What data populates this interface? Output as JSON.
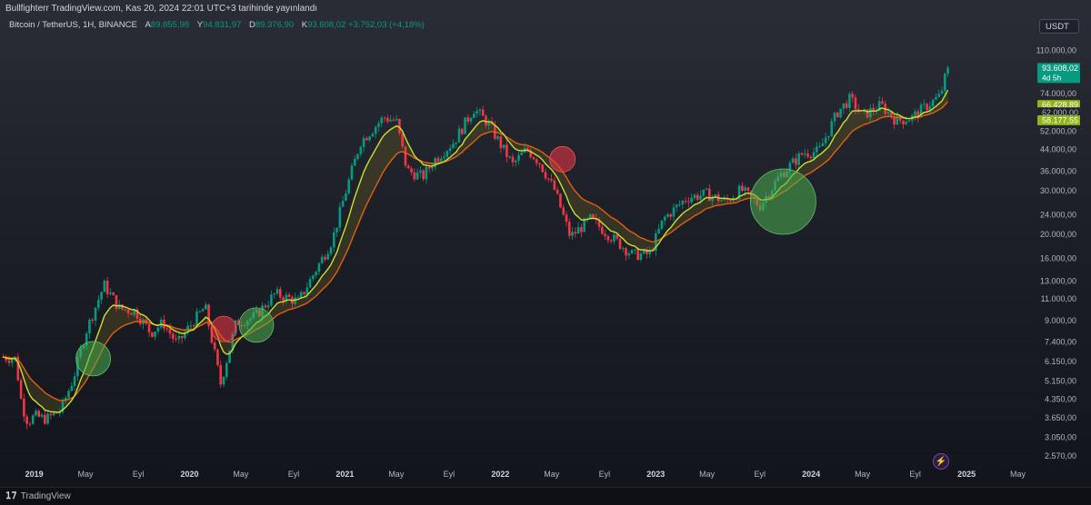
{
  "header": {
    "publisher": "Bullfighterr TradingView.com, Kas 20, 2024 22:01 UTC+3 tarihinde yayınlandı",
    "symbol": "Bitcoin / TetherUS, 1H, BINANCE",
    "ohlc": [
      {
        "k": "A",
        "v": "89.855,98"
      },
      {
        "k": "Y",
        "v": "94.831,97"
      },
      {
        "k": "D",
        "v": "89.376,90"
      },
      {
        "k": "K",
        "v": "93.608,02 +3.752,03 (+4,18%)"
      }
    ]
  },
  "currency_button": "USDT",
  "footer": {
    "brand": "TradingView"
  },
  "icons": {
    "bolt": "lightning-icon"
  },
  "colors": {
    "up": "#089981",
    "down": "#f23645",
    "fast_ma": "#c8e030",
    "slow_ma": "#e06010"
  },
  "chart_data": {
    "type": "candlestick",
    "y_scale": "log",
    "y_ticks": [
      {
        "value": 110000,
        "label": "110.000,00"
      },
      {
        "value": 74000,
        "label": "74.000,00"
      },
      {
        "value": 62000,
        "label": "62.000,00"
      },
      {
        "value": 52000,
        "label": "52.000,00"
      },
      {
        "value": 44000,
        "label": "44.000,00"
      },
      {
        "value": 36000,
        "label": "36.000,00"
      },
      {
        "value": 30000,
        "label": "30.000,00"
      },
      {
        "value": 24000,
        "label": "24.000,00"
      },
      {
        "value": 20000,
        "label": "20.000,00"
      },
      {
        "value": 16000,
        "label": "16.000,00"
      },
      {
        "value": 13000,
        "label": "13.000,00"
      },
      {
        "value": 11000,
        "label": "11.000,00"
      },
      {
        "value": 9000,
        "label": "9.000,00"
      },
      {
        "value": 7400,
        "label": "7.400,00"
      },
      {
        "value": 6150,
        "label": "6.150,00"
      },
      {
        "value": 5150,
        "label": "5.150,00"
      },
      {
        "value": 4350,
        "label": "4.350,00"
      },
      {
        "value": 3650,
        "label": "3.650,00"
      },
      {
        "value": 3050,
        "label": "3.050,00"
      },
      {
        "value": 2570,
        "label": "2.570,00"
      }
    ],
    "x_ticks": [
      {
        "t": 2019.0,
        "label": "2019",
        "bold": true
      },
      {
        "t": 2019.33,
        "label": "May"
      },
      {
        "t": 2019.67,
        "label": "Eyl"
      },
      {
        "t": 2020.0,
        "label": "2020",
        "bold": true
      },
      {
        "t": 2020.33,
        "label": "May"
      },
      {
        "t": 2020.67,
        "label": "Eyl"
      },
      {
        "t": 2021.0,
        "label": "2021",
        "bold": true
      },
      {
        "t": 2021.33,
        "label": "May"
      },
      {
        "t": 2021.67,
        "label": "Eyl"
      },
      {
        "t": 2022.0,
        "label": "2022",
        "bold": true
      },
      {
        "t": 2022.33,
        "label": "May"
      },
      {
        "t": 2022.67,
        "label": "Eyl"
      },
      {
        "t": 2023.0,
        "label": "2023",
        "bold": true
      },
      {
        "t": 2023.33,
        "label": "May"
      },
      {
        "t": 2023.67,
        "label": "Eyl"
      },
      {
        "t": 2024.0,
        "label": "2024",
        "bold": true
      },
      {
        "t": 2024.33,
        "label": "May"
      },
      {
        "t": 2024.67,
        "label": "Eyl"
      },
      {
        "t": 2025.0,
        "label": "2025",
        "bold": true
      },
      {
        "t": 2025.33,
        "label": "May"
      }
    ],
    "price_path": [
      [
        2018.8,
        6400
      ],
      [
        2018.88,
        6300
      ],
      [
        2018.92,
        4100
      ],
      [
        2018.96,
        3500
      ],
      [
        2019.0,
        3700
      ],
      [
        2019.08,
        3600
      ],
      [
        2019.17,
        3900
      ],
      [
        2019.25,
        5200
      ],
      [
        2019.33,
        8000
      ],
      [
        2019.45,
        12500
      ],
      [
        2019.55,
        10000
      ],
      [
        2019.65,
        9800
      ],
      [
        2019.75,
        8000
      ],
      [
        2019.83,
        8800
      ],
      [
        2019.92,
        7200
      ],
      [
        2020.0,
        8500
      ],
      [
        2020.1,
        10200
      ],
      [
        2020.2,
        5000
      ],
      [
        2020.3,
        8800
      ],
      [
        2020.42,
        9300
      ],
      [
        2020.55,
        11500
      ],
      [
        2020.7,
        10700
      ],
      [
        2020.83,
        15000
      ],
      [
        2020.92,
        19000
      ],
      [
        2021.0,
        29000
      ],
      [
        2021.1,
        47000
      ],
      [
        2021.25,
        59000
      ],
      [
        2021.33,
        57000
      ],
      [
        2021.4,
        36000
      ],
      [
        2021.5,
        34000
      ],
      [
        2021.58,
        40000
      ],
      [
        2021.7,
        47000
      ],
      [
        2021.83,
        64000
      ],
      [
        2021.92,
        56000
      ],
      [
        2022.0,
        46000
      ],
      [
        2022.08,
        38000
      ],
      [
        2022.17,
        44000
      ],
      [
        2022.25,
        39000
      ],
      [
        2022.35,
        30000
      ],
      [
        2022.45,
        19500
      ],
      [
        2022.58,
        23000
      ],
      [
        2022.7,
        19800
      ],
      [
        2022.85,
        16500
      ],
      [
        2022.96,
        16600
      ],
      [
        2023.05,
        23000
      ],
      [
        2023.2,
        28000
      ],
      [
        2023.33,
        29000
      ],
      [
        2023.45,
        27000
      ],
      [
        2023.55,
        30200
      ],
      [
        2023.67,
        26000
      ],
      [
        2023.8,
        34500
      ],
      [
        2023.95,
        42500
      ],
      [
        2024.05,
        43000
      ],
      [
        2024.17,
        62000
      ],
      [
        2024.25,
        70000
      ],
      [
        2024.33,
        60000
      ],
      [
        2024.45,
        66000
      ],
      [
        2024.55,
        57000
      ],
      [
        2024.65,
        59000
      ],
      [
        2024.75,
        66000
      ],
      [
        2024.83,
        72000
      ],
      [
        2024.88,
        93608
      ]
    ],
    "highlight_circles": [
      {
        "t": 2019.38,
        "price": 6300,
        "color": "green"
      },
      {
        "t": 2020.22,
        "price": 8300,
        "color": "red"
      },
      {
        "t": 2020.43,
        "price": 8600,
        "color": "green"
      },
      {
        "t": 2022.4,
        "price": 40000,
        "color": "red"
      },
      {
        "t": 2023.82,
        "price": 27000,
        "color": "green",
        "large": true
      }
    ],
    "price_labels": [
      {
        "label": "93.608,02",
        "sublabel": "4d 5h",
        "value": 93608,
        "color": "#089981"
      },
      {
        "label": "66.428,89",
        "value": 66428,
        "color": "#8fb51a"
      },
      {
        "label": "62.000,00",
        "value": 62000,
        "color": "#1e222d"
      },
      {
        "label": "58.177,55",
        "value": 58177,
        "color": "#8fb51a"
      }
    ]
  }
}
